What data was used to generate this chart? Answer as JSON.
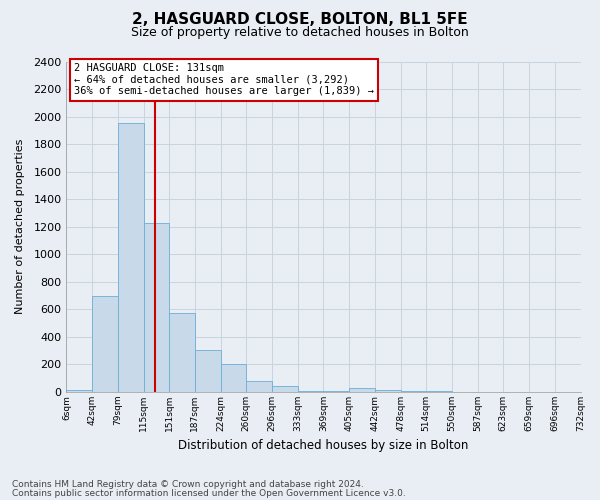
{
  "title": "2, HASGUARD CLOSE, BOLTON, BL1 5FE",
  "subtitle": "Size of property relative to detached houses in Bolton",
  "xlabel": "Distribution of detached houses by size in Bolton",
  "ylabel": "Number of detached properties",
  "bar_color": "#c8daea",
  "bar_edge_color": "#6baed6",
  "bin_edges": [
    6,
    42,
    79,
    115,
    151,
    187,
    224,
    260,
    296,
    333,
    369,
    405,
    442,
    478,
    514,
    550,
    587,
    623,
    659,
    696,
    732
  ],
  "bin_labels": [
    "6sqm",
    "42sqm",
    "79sqm",
    "115sqm",
    "151sqm",
    "187sqm",
    "224sqm",
    "260sqm",
    "296sqm",
    "333sqm",
    "369sqm",
    "405sqm",
    "442sqm",
    "478sqm",
    "514sqm",
    "550sqm",
    "587sqm",
    "623sqm",
    "659sqm",
    "696sqm",
    "732sqm"
  ],
  "bar_heights": [
    15,
    700,
    1950,
    1230,
    575,
    305,
    200,
    80,
    45,
    10,
    10,
    30,
    15,
    5,
    5,
    0,
    0,
    0,
    0,
    0
  ],
  "ylim": [
    0,
    2400
  ],
  "yticks": [
    0,
    200,
    400,
    600,
    800,
    1000,
    1200,
    1400,
    1600,
    1800,
    2000,
    2200,
    2400
  ],
  "property_line_x": 131,
  "annotation_title": "2 HASGUARD CLOSE: 131sqm",
  "annotation_line1": "← 64% of detached houses are smaller (3,292)",
  "annotation_line2": "36% of semi-detached houses are larger (1,839) →",
  "annotation_box_color": "#ffffff",
  "annotation_box_edge": "#cc0000",
  "vline_color": "#cc0000",
  "footer_line1": "Contains HM Land Registry data © Crown copyright and database right 2024.",
  "footer_line2": "Contains public sector information licensed under the Open Government Licence v3.0.",
  "background_color": "#e8eef4",
  "plot_bg_color": "#e8eef4",
  "grid_color": "#c8d4e0"
}
